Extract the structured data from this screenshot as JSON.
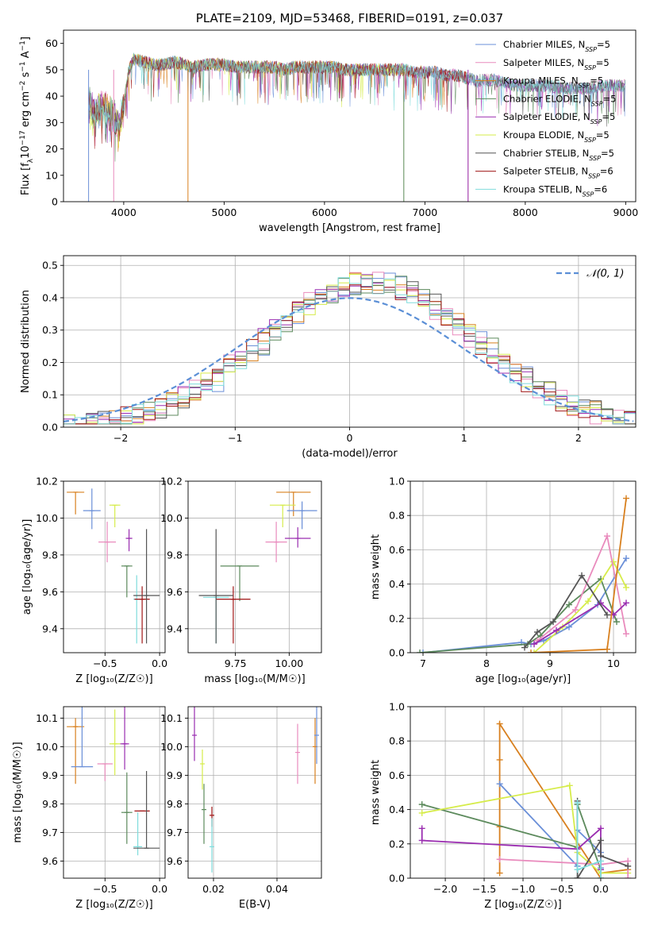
{
  "chart_data": [
    {
      "id": "spectrum",
      "type": "line",
      "title": "PLATE=2109, MJD=53468, FIBERID=0191, z=0.037",
      "xlabel": "wavelength [Angstrom, rest frame]",
      "ylabel_parts": [
        "Flux [f",
        "λ",
        "10",
        "−17",
        " erg cm",
        "−2",
        " s",
        "−1",
        " A",
        "−1",
        "]"
      ],
      "xlim": [
        3400,
        9100
      ],
      "ylim": [
        0,
        65
      ],
      "xticks": [
        4000,
        5000,
        6000,
        7000,
        8000,
        9000
      ],
      "yticks": [
        0,
        10,
        20,
        30,
        40,
        50,
        60
      ],
      "legend_position": "top-right",
      "legend": [
        {
          "name": "Chabrier MILES, N",
          "sub": "SSP",
          "tail": "=5",
          "color": "#6a8fd8"
        },
        {
          "name": "Salpeter MILES, N",
          "sub": "SSP",
          "tail": "=5",
          "color": "#e98bbd"
        },
        {
          "name": "Kroupa MILES, N",
          "sub": "SSP",
          "tail": "=5",
          "color": "#d8801f"
        },
        {
          "name": "Chabrier ELODIE, N",
          "sub": "SSP",
          "tail": "=5",
          "color": "#5c8a5c"
        },
        {
          "name": "Salpeter ELODIE, N",
          "sub": "SSP",
          "tail": "=5",
          "color": "#9a2db0"
        },
        {
          "name": "Kroupa ELODIE, N",
          "sub": "SSP",
          "tail": "=5",
          "color": "#d6ec4a"
        },
        {
          "name": "Chabrier STELIB, N",
          "sub": "SSP",
          "tail": "=5",
          "color": "#555555"
        },
        {
          "name": "Salpeter STELIB, N",
          "sub": "SSP",
          "tail": "=6",
          "color": "#a01515"
        },
        {
          "name": "Kroupa STELIB, N",
          "sub": "SSP",
          "tail": "=6",
          "color": "#7fdcdc"
        }
      ],
      "continuum": {
        "x": [
          3650,
          3700,
          3800,
          3900,
          3950,
          4000,
          4050,
          4100,
          4200,
          4300,
          4400,
          4500,
          4600,
          4700,
          4800,
          4900,
          5000,
          5100,
          5200,
          5300,
          5400,
          5500,
          5600,
          5700,
          5800,
          5900,
          6000,
          6100,
          6200,
          6300,
          6400,
          6500,
          6600,
          6700,
          6800,
          6900,
          7000,
          7100,
          7200,
          7300,
          7400,
          7500,
          7600,
          7700,
          7800,
          7900,
          8000,
          8200,
          8400,
          8600,
          8800,
          9000
        ],
        "y": [
          38,
          34,
          36,
          33,
          28,
          36,
          50,
          54,
          53,
          52,
          52,
          53,
          52,
          51,
          52,
          52,
          52,
          51,
          51,
          51,
          51,
          51,
          50,
          51,
          51,
          51,
          51,
          51,
          50,
          50,
          50,
          50,
          50,
          50,
          50,
          49,
          49,
          49,
          48,
          48,
          47,
          46,
          46,
          46,
          45,
          44,
          44,
          44,
          43,
          43,
          44,
          44
        ]
      },
      "dropouts": [
        3650,
        3900,
        4640,
        6790,
        7430
      ]
    },
    {
      "id": "residuals",
      "type": "step",
      "xlabel": "(data-model)/error",
      "ylabel": "Normed distribution",
      "xlim": [
        -2.5,
        2.5
      ],
      "ylim": [
        0,
        0.53
      ],
      "xticks": [
        -2,
        -1,
        0,
        1,
        2
      ],
      "xtick_labels": [
        "−2",
        "−1",
        "0",
        "1",
        "2"
      ],
      "yticks": [
        0.0,
        0.1,
        0.2,
        0.3,
        0.4,
        0.5
      ],
      "ytick_labels": [
        "0.0",
        "0.1",
        "0.2",
        "0.3",
        "0.4",
        "0.5"
      ],
      "grid": true,
      "legend_position": "top-right",
      "gaussian_label": "𝒩(0, 1)",
      "gaussian_color": "#5b8fd6",
      "bin_width": 0.1
    },
    {
      "id": "age-vs-Z",
      "type": "errorbar",
      "xlabel": "Z [log₁₀(Z/Z☉)]",
      "ylabel": "age  [log₁₀(age/yr)]",
      "xlim": [
        -0.88,
        0.05
      ],
      "ylim": [
        9.27,
        10.2
      ],
      "xticks": [
        -0.5,
        0.0
      ],
      "xtick_labels": [
        "−0.5",
        "0.0"
      ],
      "yticks": [
        9.4,
        9.6,
        9.8,
        10.0,
        10.2
      ],
      "ytick_labels": [
        "9.4",
        "9.6",
        "9.8",
        "10.0",
        "10.2"
      ],
      "grid": true,
      "points": [
        {
          "x": -0.77,
          "xerr": 0.08,
          "y": 10.14,
          "yerr": [
            0.12,
            0.0
          ],
          "color": "#d8801f"
        },
        {
          "x": -0.62,
          "xerr": 0.08,
          "y": 10.04,
          "yerr": [
            0.1,
            0.12
          ],
          "color": "#6a8fd8"
        },
        {
          "x": -0.41,
          "xerr": 0.05,
          "y": 10.07,
          "yerr": [
            0.12,
            0.0
          ],
          "color": "#d6ec4a"
        },
        {
          "x": -0.48,
          "xerr": 0.08,
          "y": 9.87,
          "yerr": [
            0.11,
            0.11
          ],
          "color": "#e98bbd"
        },
        {
          "x": -0.28,
          "xerr": 0.03,
          "y": 9.89,
          "yerr": [
            0.07,
            0.05
          ],
          "color": "#9a2db0"
        },
        {
          "x": -0.3,
          "xerr": 0.05,
          "y": 9.74,
          "yerr": [
            0.17,
            0.0
          ],
          "color": "#5c8a5c"
        },
        {
          "x": -0.21,
          "xerr": 0.03,
          "y": 9.56,
          "yerr": [
            0.24,
            0.13
          ],
          "color": "#7fdcdc"
        },
        {
          "x": -0.16,
          "xerr": 0.07,
          "y": 9.56,
          "yerr": [
            0.24,
            0.07
          ],
          "color": "#a01515"
        },
        {
          "x": -0.12,
          "xerr": 0.12,
          "y": 9.58,
          "yerr": [
            0.26,
            0.36
          ],
          "color": "#555555"
        }
      ]
    },
    {
      "id": "age-vs-mass",
      "type": "errorbar",
      "xlabel": "mass [log₁₀(M/M☉)]",
      "ylabel": "",
      "xlim": [
        9.53,
        10.15
      ],
      "ylim": [
        9.27,
        10.2
      ],
      "xticks": [
        9.75,
        10.0
      ],
      "xtick_labels": [
        "9.75",
        "10.00"
      ],
      "yticks": [
        9.4,
        9.6,
        9.8,
        10.0,
        10.2
      ],
      "ytick_labels": [
        "9.4",
        "9.6",
        "9.8",
        "10.0",
        "10.2"
      ],
      "grid": true,
      "points": [
        {
          "x": 10.02,
          "xerr": 0.08,
          "y": 10.14,
          "yerr": [
            0.13,
            0.0
          ],
          "color": "#d8801f"
        },
        {
          "x": 10.06,
          "xerr": 0.07,
          "y": 10.04,
          "yerr": [
            0.1,
            0.05
          ],
          "color": "#6a8fd8"
        },
        {
          "x": 9.97,
          "xerr": 0.06,
          "y": 10.07,
          "yerr": [
            0.12,
            0.0
          ],
          "color": "#d6ec4a"
        },
        {
          "x": 9.94,
          "xerr": 0.05,
          "y": 9.87,
          "yerr": [
            0.11,
            0.11
          ],
          "color": "#e98bbd"
        },
        {
          "x": 10.04,
          "xerr": 0.06,
          "y": 9.89,
          "yerr": [
            0.05,
            0.06
          ],
          "color": "#9a2db0"
        },
        {
          "x": 9.77,
          "xerr": 0.09,
          "y": 9.74,
          "yerr": [
            0.19,
            0.0
          ],
          "color": "#5c8a5c"
        },
        {
          "x": 9.66,
          "xerr": 0.06,
          "y": 9.57,
          "yerr": [
            0.25,
            0.0
          ],
          "color": "#7fdcdc"
        },
        {
          "x": 9.74,
          "xerr": 0.08,
          "y": 9.56,
          "yerr": [
            0.24,
            0.07
          ],
          "color": "#a01515"
        },
        {
          "x": 9.66,
          "xerr": 0.08,
          "y": 9.58,
          "yerr": [
            0.26,
            0.36
          ],
          "color": "#555555"
        }
      ]
    },
    {
      "id": "massweight-vs-age",
      "type": "line",
      "xlabel": "age  [log₁₀(age/yr)]",
      "ylabel": "mass weight",
      "xlim": [
        6.8,
        10.35
      ],
      "ylim": [
        0.0,
        1.0
      ],
      "xticks": [
        7,
        8,
        9,
        10
      ],
      "xtick_labels": [
        "7",
        "8",
        "9",
        "10"
      ],
      "yticks": [
        0.0,
        0.2,
        0.4,
        0.6,
        0.8,
        1.0
      ],
      "ytick_labels": [
        "0.0",
        "0.2",
        "0.4",
        "0.6",
        "0.8",
        "1.0"
      ],
      "grid": true,
      "series": [
        {
          "color": "#6a8fd8",
          "x": [
            7.0,
            8.55,
            8.7,
            8.9,
            9.3,
            9.75,
            10.2
          ],
          "y": [
            0.0,
            0.06,
            0.05,
            0.07,
            0.15,
            0.28,
            0.55
          ]
        },
        {
          "color": "#5c8a5c",
          "x": [
            6.95,
            8.65,
            8.85,
            9.3,
            9.8,
            10.05
          ],
          "y": [
            0.0,
            0.05,
            0.1,
            0.28,
            0.43,
            0.18
          ]
        },
        {
          "color": "#d6ec4a",
          "x": [
            8.75,
            9.2,
            9.6,
            10.0,
            10.2
          ],
          "y": [
            0.0,
            0.15,
            0.3,
            0.53,
            0.38
          ]
        },
        {
          "color": "#e98bbd",
          "x": [
            8.8,
            9.4,
            9.9,
            10.2
          ],
          "y": [
            0.07,
            0.25,
            0.68,
            0.11
          ]
        },
        {
          "color": "#9a2db0",
          "x": [
            8.75,
            9.1,
            9.8,
            10.0,
            10.2
          ],
          "y": [
            0.05,
            0.13,
            0.29,
            0.22,
            0.29
          ]
        },
        {
          "color": "#555555",
          "x": [
            8.6,
            8.8,
            9.05,
            9.5,
            9.9
          ],
          "y": [
            0.03,
            0.12,
            0.18,
            0.45,
            0.22
          ]
        },
        {
          "color": "#d8801f",
          "x": [
            8.7,
            9.9,
            10.2
          ],
          "y": [
            0.0,
            0.02,
            0.9
          ]
        }
      ]
    },
    {
      "id": "mass-vs-Z",
      "type": "errorbar",
      "xlabel": "Z [log₁₀(Z/Z☉)]",
      "ylabel": "mass [log₁₀(M/M☉)]",
      "xlim": [
        -0.88,
        0.05
      ],
      "ylim": [
        9.54,
        10.14
      ],
      "xticks": [
        -0.5,
        0.0
      ],
      "xtick_labels": [
        "−0.5",
        "0.0"
      ],
      "yticks": [
        9.6,
        9.7,
        9.8,
        9.9,
        10.0,
        10.1
      ],
      "ytick_labels": [
        "9.6",
        "9.7",
        "9.8",
        "9.9",
        "10.0",
        "10.1"
      ],
      "grid": true,
      "points": [
        {
          "x": -0.77,
          "xerr": 0.08,
          "y": 10.07,
          "yerr": [
            0.2,
            0.03
          ],
          "color": "#d8801f"
        },
        {
          "x": -0.71,
          "xerr": 0.1,
          "y": 9.93,
          "yerr": [
            0.0,
            0.21
          ],
          "color": "#6a8fd8"
        },
        {
          "x": -0.41,
          "xerr": 0.05,
          "y": 10.01,
          "yerr": [
            0.11,
            0.12
          ],
          "color": "#d6ec4a"
        },
        {
          "x": -0.5,
          "xerr": 0.07,
          "y": 9.94,
          "yerr": [
            0.06,
            0.0
          ],
          "color": "#e98bbd"
        },
        {
          "x": -0.32,
          "xerr": 0.04,
          "y": 10.01,
          "yerr": [
            0.09,
            0.13
          ],
          "color": "#9a2db0"
        },
        {
          "x": -0.3,
          "xerr": 0.05,
          "y": 9.77,
          "yerr": [
            0.11,
            0.14
          ],
          "color": "#5c8a5c"
        },
        {
          "x": -0.2,
          "xerr": 0.04,
          "y": 9.65,
          "yerr": [
            0.03,
            0.12
          ],
          "color": "#7fdcdc"
        },
        {
          "x": -0.16,
          "xerr": 0.07,
          "y": 9.775,
          "yerr": [
            0.0,
            0.0
          ],
          "color": "#a01515"
        },
        {
          "x": -0.12,
          "xerr": 0.12,
          "y": 9.645,
          "yerr": [
            0.0,
            0.27
          ],
          "color": "#555555"
        }
      ]
    },
    {
      "id": "mass-vs-EBV",
      "type": "errorbar",
      "xlabel": "E(B-V)",
      "ylabel": "",
      "xlim": [
        0.012,
        0.054
      ],
      "ylim": [
        9.54,
        10.14
      ],
      "xticks": [
        0.02,
        0.04
      ],
      "xtick_labels": [
        "0.02",
        "0.04"
      ],
      "yticks": [
        9.6,
        9.7,
        9.8,
        9.9,
        10.0,
        10.1
      ],
      "ytick_labels": [
        "9.6",
        "9.7",
        "9.8",
        "9.9",
        "10.0",
        "10.1"
      ],
      "grid": true,
      "points": [
        {
          "x": 0.014,
          "y": 10.04,
          "yerr": [
            0.09,
            0.1
          ],
          "color": "#9a2db0"
        },
        {
          "x": 0.0165,
          "y": 9.94,
          "yerr": [
            0.09,
            0.05
          ],
          "color": "#d6ec4a"
        },
        {
          "x": 0.017,
          "y": 9.78,
          "yerr": [
            0.12,
            0.09
          ],
          "color": "#5c8a5c"
        },
        {
          "x": 0.0195,
          "y": 9.76,
          "yerr": [
            0.04,
            0.03
          ],
          "color": "#a01515"
        },
        {
          "x": 0.0195,
          "y": 9.65,
          "yerr": [
            0.09,
            0.1
          ],
          "color": "#7fdcdc"
        },
        {
          "x": 0.0465,
          "y": 9.98,
          "yerr": [
            0.11,
            0.1
          ],
          "color": "#e98bbd"
        },
        {
          "x": 0.052,
          "y": 10.0,
          "yerr": [
            0.13,
            0.1
          ],
          "color": "#d8801f"
        },
        {
          "x": 0.0525,
          "y": 10.04,
          "yerr": [
            0.1,
            0.1
          ],
          "color": "#6a8fd8"
        }
      ]
    },
    {
      "id": "massweight-vs-Z",
      "type": "line",
      "xlabel": "Z [log₁₀(Z/Z☉)]",
      "ylabel": "mass weight",
      "xlim": [
        -2.45,
        0.45
      ],
      "ylim": [
        0.0,
        1.0
      ],
      "xticks": [
        -2.0,
        -1.5,
        -1.0,
        -0.5,
        0.0
      ],
      "xtick_labels": [
        "−2.0",
        "−1.5",
        "−1.0",
        "−0.5",
        "0.0"
      ],
      "yticks": [
        0.0,
        0.2,
        0.4,
        0.6,
        0.8,
        1.0
      ],
      "ytick_labels": [
        "0.0",
        "0.2",
        "0.4",
        "0.6",
        "0.8",
        "1.0"
      ],
      "grid": true,
      "series": [
        {
          "color": "#d8801f",
          "x": [
            -1.3,
            -1.3,
            -1.3,
            -1.3,
            0.0,
            0.0,
            0.35
          ],
          "y": [
            0.03,
            0.3,
            0.69,
            0.9,
            0.0,
            0.03,
            0.05
          ]
        },
        {
          "color": "#6a8fd8",
          "x": [
            -1.3,
            -0.3,
            -0.3,
            0.0,
            0.0
          ],
          "y": [
            0.55,
            0.07,
            0.28,
            0.15,
            0.06
          ]
        },
        {
          "color": "#5c8a5c",
          "x": [
            -2.3,
            -0.3,
            -0.3,
            0.0
          ],
          "y": [
            0.43,
            0.18,
            0.43,
            0.05
          ]
        },
        {
          "color": "#d6ec4a",
          "x": [
            -2.3,
            -0.4,
            -0.3,
            0.0,
            0.35
          ],
          "y": [
            0.38,
            0.54,
            0.15,
            0.03,
            0.03
          ]
        },
        {
          "color": "#e98bbd",
          "x": [
            -1.3,
            0.0,
            0.35,
            0.35
          ],
          "y": [
            0.11,
            0.08,
            0.1,
            0.0
          ]
        },
        {
          "color": "#9a2db0",
          "x": [
            -2.3,
            -2.3,
            -0.3,
            0.0,
            0.0
          ],
          "y": [
            0.29,
            0.22,
            0.17,
            0.29,
            0.05
          ]
        },
        {
          "color": "#555555",
          "x": [
            -0.3,
            -0.3,
            0.0,
            0.0,
            0.35
          ],
          "y": [
            0.45,
            0.0,
            0.22,
            0.13,
            0.07
          ]
        },
        {
          "color": "#7fdcdc",
          "x": [
            -0.3,
            -0.3,
            0.0,
            0.0
          ],
          "y": [
            0.44,
            0.05,
            0.1,
            0.0
          ]
        }
      ]
    }
  ]
}
